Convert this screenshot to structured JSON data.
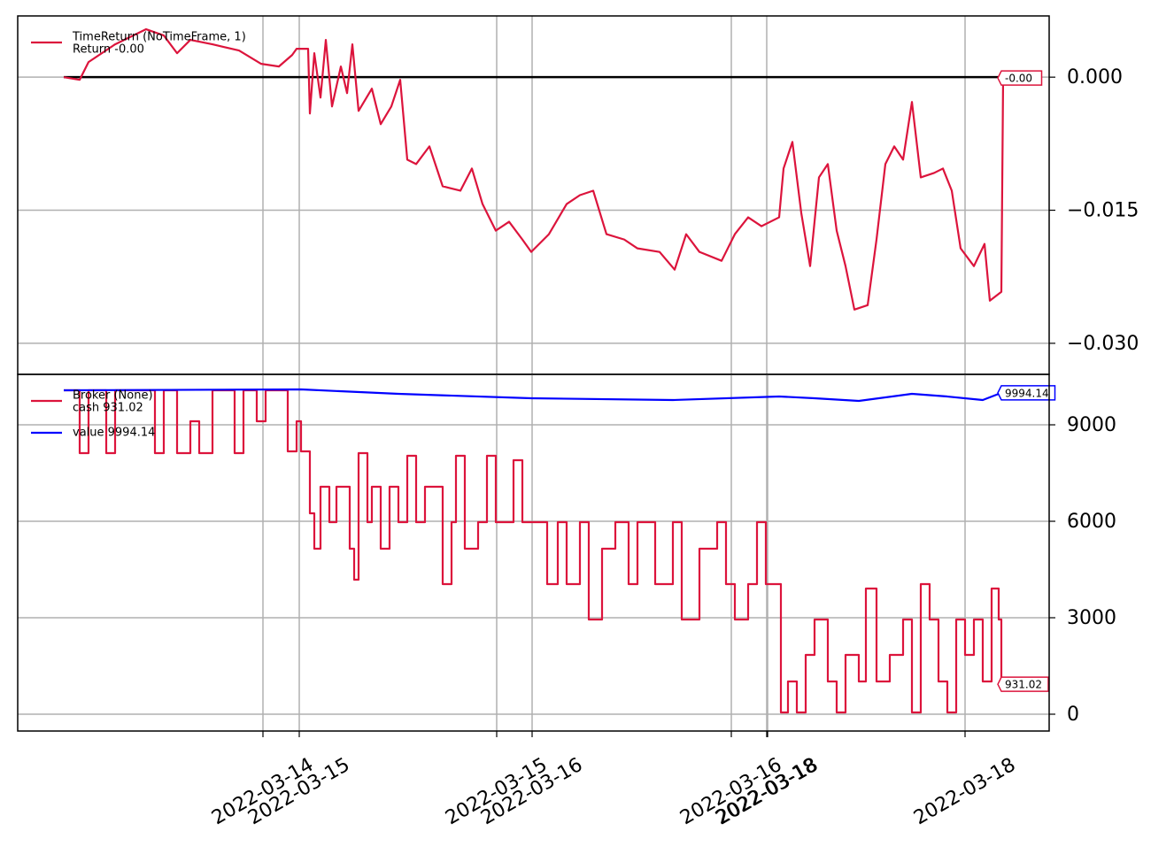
{
  "chart_data": [
    {
      "type": "line",
      "legend_title": "TimeReturn (NoTimeFrame, 1)",
      "reference_line": 0,
      "reference_color": "#000000",
      "xlim": [
        0,
        1165
      ],
      "ylim": [
        -0.0335,
        0.0069
      ],
      "grid": true,
      "xticks": [
        277,
        318,
        541,
        581,
        806,
        846,
        1070
      ],
      "yticks": [
        {
          "value": 0,
          "label": "0.000"
        },
        {
          "value": -0.015,
          "label": "−0.015"
        },
        {
          "value": -0.03,
          "label": "−0.030"
        }
      ],
      "series": [
        {
          "name": "Return -0.00",
          "color": "#dc143c",
          "end_label": "-0.00",
          "x": [
            52,
            70,
            80,
            110,
            145,
            165,
            180,
            195,
            220,
            250,
            275,
            295,
            310,
            315,
            328,
            330,
            335,
            342,
            348,
            355,
            365,
            372,
            378,
            385,
            400,
            410,
            422,
            432,
            440,
            450,
            465,
            480,
            500,
            513,
            525,
            540,
            555,
            570,
            580,
            600,
            620,
            635,
            650,
            665,
            685,
            700,
            725,
            742,
            755,
            770,
            795,
            810,
            825,
            840,
            860,
            865,
            875,
            885,
            895,
            905,
            915,
            925,
            935,
            945,
            960,
            970,
            980,
            990,
            1000,
            1010,
            1020,
            1035,
            1045,
            1055,
            1065,
            1080,
            1092,
            1098,
            1111,
            1113
          ],
          "values": [
            0,
            -0.0003,
            0.0017,
            0.0037,
            0.0054,
            0.0047,
            0.0027,
            0.0042,
            0.0037,
            0.003,
            0.0015,
            0.0012,
            0.0025,
            0.0032,
            0.0032,
            -0.0041,
            0.0027,
            -0.0023,
            0.0042,
            -0.0033,
            0.0012,
            -0.0018,
            0.0037,
            -0.0038,
            -0.0013,
            -0.0053,
            -0.0033,
            -0.0003,
            -0.0093,
            -0.0098,
            -0.0078,
            -0.0123,
            -0.0128,
            -0.0103,
            -0.0143,
            -0.0173,
            -0.0163,
            -0.0183,
            -0.0197,
            -0.0177,
            -0.0143,
            -0.0133,
            -0.0128,
            -0.0177,
            -0.0183,
            -0.0193,
            -0.0197,
            -0.0217,
            -0.0177,
            -0.0197,
            -0.0207,
            -0.0177,
            -0.0158,
            -0.0168,
            -0.0158,
            -0.0103,
            -0.0073,
            -0.0153,
            -0.0213,
            -0.0113,
            -0.0098,
            -0.0173,
            -0.0213,
            -0.0262,
            -0.0257,
            -0.0183,
            -0.0098,
            -0.0078,
            -0.0093,
            -0.0028,
            -0.0113,
            -0.0108,
            -0.0103,
            -0.0128,
            -0.0193,
            -0.0213,
            -0.0188,
            -0.0252,
            -0.0242,
            -0.0001
          ]
        }
      ]
    },
    {
      "type": "line",
      "legend_title": "Broker (None)",
      "xlim": [
        0,
        1165
      ],
      "ylim": [
        -523,
        10569
      ],
      "grid": true,
      "xticks": [
        {
          "value": 277,
          "label": "2022-03-14"
        },
        {
          "value": 318,
          "label": "2022-03-15"
        },
        {
          "value": 541,
          "label": "2022-03-15"
        },
        {
          "value": 581,
          "label": "2022-03-16"
        },
        {
          "value": 806,
          "label": "2022-03-16"
        },
        {
          "value": 846,
          "label": "2022-03-18"
        },
        {
          "value": 847,
          "label": "2022-03-18"
        },
        {
          "value": 1070,
          "label": "2022-03-18"
        }
      ],
      "yticks": [
        0,
        3000,
        6000,
        9000
      ],
      "series": [
        {
          "name": "cash 931.02",
          "color": "#dc143c",
          "drawstyle": "steps-post",
          "end_label": "931.02",
          "x": [
            52,
            70,
            80,
            100,
            110,
            155,
            165,
            180,
            195,
            205,
            220,
            245,
            255,
            270,
            280,
            300,
            305,
            315,
            320,
            328,
            330,
            335,
            342,
            352,
            360,
            375,
            380,
            385,
            395,
            400,
            410,
            420,
            430,
            440,
            450,
            460,
            480,
            490,
            495,
            505,
            520,
            530,
            540,
            560,
            570,
            595,
            598,
            610,
            620,
            635,
            645,
            660,
            675,
            690,
            700,
            720,
            740,
            750,
            770,
            790,
            800,
            810,
            825,
            835,
            845,
            860,
            862,
            870,
            880,
            890,
            900,
            915,
            925,
            935,
            950,
            958,
            970,
            985,
            1000,
            1010,
            1020,
            1030,
            1040,
            1050,
            1060,
            1070,
            1080,
            1090,
            1100,
            1108,
            1111
          ],
          "values": [
            10073,
            8119,
            10073,
            8119,
            10073,
            8119,
            10073,
            8119,
            9110,
            8119,
            10073,
            8119,
            10073,
            9110,
            10073,
            10073,
            8174,
            9110,
            8174,
            8174,
            6248,
            5147,
            7073,
            5972,
            7073,
            5147,
            4183,
            8119,
            5972,
            7073,
            5147,
            7073,
            5972,
            8037,
            5972,
            7073,
            4046,
            5972,
            8037,
            5147,
            5972,
            8037,
            5972,
            7899,
            5972,
            5972,
            4046,
            5972,
            4046,
            5972,
            2945,
            5147,
            5972,
            4046,
            5972,
            4046,
            5972,
            2945,
            5147,
            5972,
            4046,
            2945,
            4046,
            5972,
            4046,
            4046,
            55,
            1018,
            55,
            1844,
            2945,
            1018,
            55,
            1844,
            1018,
            3908,
            1018,
            1844,
            2945,
            55,
            4046,
            2945,
            1018,
            55,
            2945,
            1844,
            2945,
            1018,
            3908,
            2945,
            931.02
          ]
        },
        {
          "name": "value 9994.14",
          "color": "#0000ff",
          "end_label": "9994.14",
          "x": [
            52,
            320,
            430,
            580,
            740,
            860,
            900,
            950,
            1010,
            1050,
            1090,
            1111
          ],
          "values": [
            10073,
            10101,
            9963,
            9826,
            9771,
            9881,
            9826,
            9743,
            9963,
            9880,
            9770,
            9994.14
          ]
        }
      ]
    }
  ]
}
